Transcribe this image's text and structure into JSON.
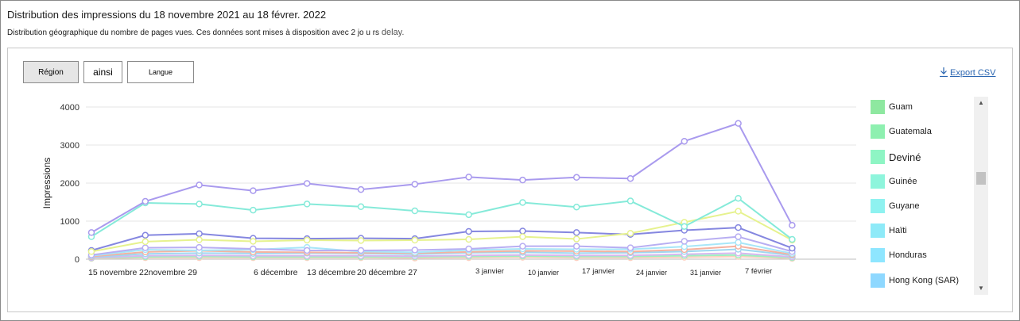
{
  "title": "Distribution des impressions du 18 novembre 2021 au 18 févrer. 2022",
  "subtitle": "Distribution géographique du nombre de pages vues. Ces données sont mises à disposition avec 2 jo u rs",
  "subtitle_delay": "delay.",
  "buttons": {
    "region": "Région",
    "ainsi": "ainsi",
    "langue": "Langue"
  },
  "export_label": "Export CSV",
  "colors": {
    "accent": "#2b66b1",
    "border": "#8a8a8a"
  },
  "legend": [
    {
      "label": "Guam",
      "color": "#8ee8a0"
    },
    {
      "label": "Guatemala",
      "color": "#8ef0b0"
    },
    {
      "label": "Deviné",
      "color": "#8ef5c4"
    },
    {
      "label": "Guinée",
      "color": "#8ef5dc"
    },
    {
      "label": "Guyane",
      "color": "#8ef2f0"
    },
    {
      "label": "Haïti",
      "color": "#8eeaf8"
    },
    {
      "label": "Honduras",
      "color": "#8ee6ff"
    },
    {
      "label": "Hong Kong (SAR)",
      "color": "#8ed8ff"
    }
  ],
  "chart_data": {
    "type": "line",
    "ylabel": "Impressions",
    "ylim": [
      0,
      4000
    ],
    "yticks": [
      0,
      1000,
      2000,
      3000,
      4000
    ],
    "xtick_labels": [
      "15 novembre",
      "22novembre 29",
      "6 décembre",
      "13 décembre",
      "20 décembre 27",
      "3 janvier",
      "10 janvier",
      "17 janvier",
      "24 janvier",
      "31 janvier",
      "7 février"
    ],
    "grid": true,
    "series": [
      {
        "color": "#a99aee",
        "values": [
          700,
          1520,
          1950,
          1800,
          1990,
          1830,
          1970,
          2160,
          2080,
          2150,
          2120,
          3100,
          3570,
          890
        ]
      },
      {
        "color": "#85ead9",
        "values": [
          590,
          1480,
          1450,
          1290,
          1450,
          1380,
          1270,
          1170,
          1490,
          1370,
          1530,
          860,
          1600,
          520
        ]
      },
      {
        "color": "#e6f28e",
        "values": [
          200,
          460,
          510,
          470,
          500,
          490,
          500,
          520,
          590,
          530,
          680,
          970,
          1260,
          500
        ]
      },
      {
        "color": "#8587e0",
        "values": [
          230,
          630,
          670,
          550,
          540,
          550,
          540,
          730,
          740,
          700,
          650,
          760,
          830,
          290
        ]
      },
      {
        "color": "#b8aef2",
        "values": [
          110,
          300,
          310,
          270,
          230,
          230,
          240,
          270,
          340,
          340,
          300,
          470,
          590,
          200
        ]
      },
      {
        "color": "#a7e6f8",
        "values": [
          90,
          250,
          230,
          250,
          310,
          200,
          180,
          240,
          270,
          260,
          260,
          330,
          440,
          150
        ]
      },
      {
        "color": "#f4b2a0",
        "values": [
          70,
          190,
          220,
          190,
          180,
          170,
          160,
          190,
          220,
          210,
          200,
          250,
          340,
          120
        ]
      },
      {
        "color": "#9fd7f0",
        "values": [
          60,
          140,
          160,
          150,
          160,
          150,
          130,
          170,
          180,
          160,
          170,
          200,
          260,
          100
        ]
      },
      {
        "color": "#d7b8f0",
        "values": [
          40,
          90,
          100,
          90,
          90,
          90,
          80,
          100,
          110,
          100,
          100,
          130,
          160,
          60
        ]
      },
      {
        "color": "#9ff0c0",
        "values": [
          30,
          60,
          70,
          60,
          60,
          60,
          60,
          70,
          80,
          70,
          70,
          90,
          110,
          40
        ]
      },
      {
        "color": "#ffd0c0",
        "values": [
          20,
          40,
          40,
          40,
          40,
          40,
          30,
          40,
          50,
          40,
          40,
          50,
          70,
          20
        ]
      }
    ]
  }
}
